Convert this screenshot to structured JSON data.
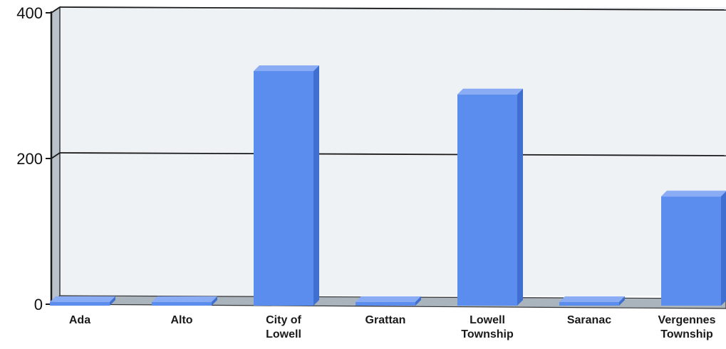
{
  "chart_data": {
    "type": "bar",
    "title": "",
    "xlabel": "",
    "ylabel": "",
    "categories": [
      "Ada",
      "Alto",
      "City of Lowell",
      "Grattan",
      "Lowell Township",
      "Saranac",
      "Vergennes Township"
    ],
    "category_lines": [
      [
        "Ada"
      ],
      [
        "Alto"
      ],
      [
        "City of",
        "Lowell"
      ],
      [
        "Grattan"
      ],
      [
        "Lowell",
        "Township"
      ],
      [
        "Saranac"
      ],
      [
        "Vergennes",
        "Township"
      ]
    ],
    "values": [
      3,
      3,
      320,
      3,
      288,
      3,
      148
    ],
    "ylim": [
      0,
      400
    ],
    "yticks": [
      "0",
      "200",
      "400"
    ],
    "grid": true,
    "legend": "none",
    "bar_color": "#5b8def"
  }
}
